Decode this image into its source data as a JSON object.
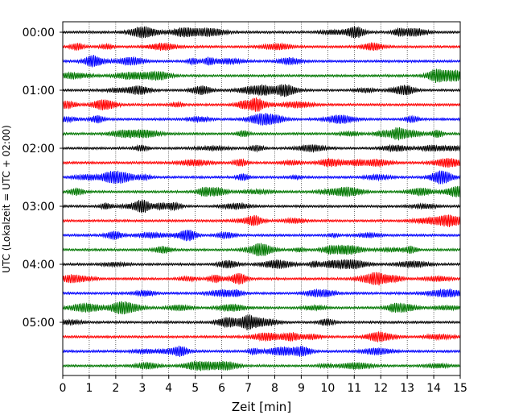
{
  "chart_data": {
    "type": "line",
    "xlabel": "Zeit  [min]",
    "ylabel": "UTC (Lokalzeit = UTC + 02:00)",
    "xlim": [
      0,
      15
    ],
    "x_ticks": [
      "0",
      "1",
      "2",
      "3",
      "4",
      "5",
      "6",
      "7",
      "8",
      "9",
      "10",
      "11",
      "12",
      "13",
      "14",
      "15"
    ],
    "y_tick_labels": [
      "00:00",
      "01:00",
      "02:00",
      "03:00",
      "04:00",
      "05:00"
    ],
    "trace_interval_minutes": 15,
    "trace_count": 24,
    "trace_colors": [
      "#000000",
      "#ff0000",
      "#0000ff",
      "#007700"
    ],
    "grid": "vertical dotted lines at each minute"
  }
}
